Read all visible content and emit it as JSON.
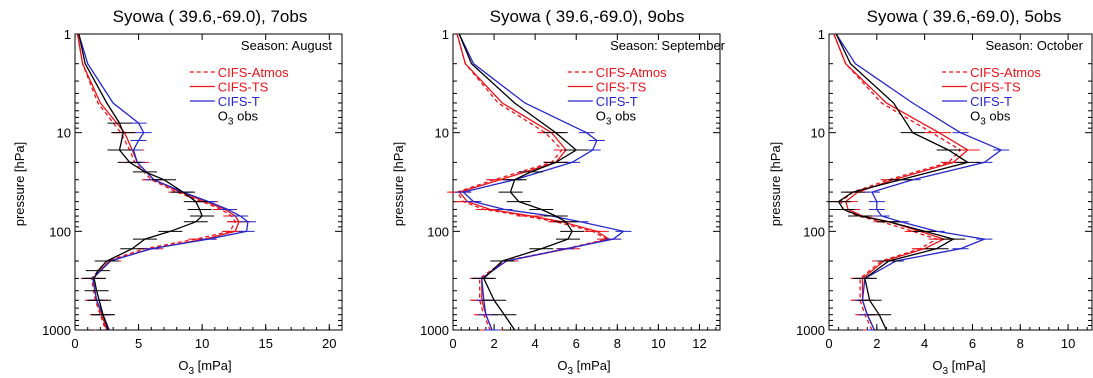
{
  "chart_data": [
    {
      "type": "line",
      "title": "Syowa (  39.6,-69.0),  7obs",
      "season": "Season: August",
      "xlabel": "O3 [mPa]",
      "ylabel": "pressure [hPa]",
      "xlim": [
        0,
        21
      ],
      "xticks": [
        0,
        5,
        10,
        15,
        20
      ],
      "ylim": [
        1000,
        1
      ],
      "yscale": "log",
      "yticks": [
        1,
        10,
        100,
        1000
      ],
      "legend": "top-right",
      "series": [
        {
          "name": "CIFS-Atmos",
          "color": "#e8141b",
          "dash": true,
          "pressure": [
            1,
            2,
            5,
            10,
            15,
            20,
            30,
            40,
            50,
            60,
            70,
            80,
            100,
            120,
            150,
            200,
            300,
            500,
            700,
            1000
          ],
          "o3": [
            0.2,
            0.6,
            1.8,
            3.6,
            4.3,
            4.7,
            6.0,
            8.0,
            10.0,
            11.5,
            12.3,
            12.6,
            12.2,
            9.5,
            5.5,
            2.5,
            1.3,
            1.6,
            2.0,
            2.4
          ]
        },
        {
          "name": "CIFS-TS",
          "color": "#e8141b",
          "dash": false,
          "pressure": [
            1,
            2,
            5,
            10,
            15,
            20,
            30,
            40,
            50,
            60,
            70,
            80,
            100,
            120,
            150,
            200,
            300,
            500,
            700,
            1000
          ],
          "o3": [
            0.2,
            0.6,
            2.0,
            3.9,
            4.5,
            4.9,
            6.2,
            8.3,
            10.3,
            11.8,
            12.6,
            12.9,
            12.6,
            10.2,
            6.0,
            2.7,
            1.4,
            1.7,
            2.1,
            2.5
          ]
        },
        {
          "name": "CIFS-T",
          "color": "#2727cc",
          "dash": false,
          "pressure": [
            1,
            2,
            5,
            8,
            10,
            12,
            15,
            20,
            30,
            40,
            50,
            60,
            70,
            80,
            100,
            120,
            150,
            200,
            300,
            500,
            700,
            1000
          ],
          "o3": [
            0.3,
            1.0,
            3.0,
            5.0,
            5.4,
            5.0,
            4.6,
            4.9,
            6.2,
            8.5,
            10.5,
            12.0,
            13.0,
            13.6,
            13.5,
            10.5,
            6.0,
            2.8,
            1.4,
            1.7,
            2.2,
            2.7
          ]
        },
        {
          "name": "O3 obs",
          "color": "#000000",
          "dash": false,
          "pressure": [
            1,
            2,
            5,
            8,
            10,
            15,
            20,
            25,
            30,
            40,
            50,
            60,
            70,
            80,
            100,
            120,
            150,
            200,
            250,
            300,
            400,
            500,
            700,
            1000
          ],
          "o3": [
            0.3,
            0.8,
            2.5,
            3.5,
            3.8,
            3.5,
            4.3,
            5.5,
            7.0,
            8.5,
            9.5,
            9.8,
            10.0,
            9.5,
            7.5,
            5.5,
            4.5,
            2.5,
            1.8,
            1.5,
            1.7,
            1.9,
            2.2,
            2.6
          ]
        }
      ]
    },
    {
      "type": "line",
      "title": "Syowa (  39.6,-69.0),  9obs",
      "season": "Season: September",
      "xlabel": "O3 [mPa]",
      "ylabel": "pressure [hPa]",
      "xlim": [
        0,
        13
      ],
      "xticks": [
        0,
        2,
        4,
        6,
        8,
        10,
        12
      ],
      "ylim": [
        1000,
        1
      ],
      "yscale": "log",
      "yticks": [
        1,
        10,
        100,
        1000
      ],
      "legend": "top-right",
      "series": [
        {
          "name": "CIFS-Atmos",
          "color": "#e8141b",
          "dash": true,
          "pressure": [
            1,
            2,
            5,
            10,
            15,
            20,
            30,
            40,
            50,
            60,
            70,
            80,
            100,
            120,
            150,
            200,
            300,
            500,
            700,
            1000
          ],
          "o3": [
            0.2,
            0.6,
            2.2,
            4.5,
            5.3,
            4.8,
            2.0,
            0.2,
            0.5,
            1.5,
            3.5,
            5.0,
            6.8,
            7.5,
            5.5,
            2.5,
            1.3,
            1.3,
            1.5,
            1.8
          ]
        },
        {
          "name": "CIFS-TS",
          "color": "#e8141b",
          "dash": false,
          "pressure": [
            1,
            2,
            5,
            10,
            15,
            20,
            30,
            40,
            50,
            60,
            70,
            80,
            100,
            120,
            150,
            200,
            300,
            500,
            700,
            1000
          ],
          "o3": [
            0.2,
            0.6,
            2.4,
            4.8,
            5.5,
            5.0,
            2.3,
            0.3,
            0.7,
            1.8,
            3.8,
            5.3,
            7.0,
            7.6,
            5.6,
            2.6,
            1.4,
            1.4,
            1.6,
            1.9
          ]
        },
        {
          "name": "CIFS-T",
          "color": "#2727cc",
          "dash": false,
          "pressure": [
            1,
            2,
            5,
            10,
            12,
            15,
            20,
            30,
            40,
            50,
            60,
            70,
            80,
            100,
            120,
            150,
            200,
            300,
            500,
            700,
            1000
          ],
          "o3": [
            0.3,
            1.0,
            3.5,
            6.5,
            7.0,
            6.8,
            5.8,
            3.0,
            0.5,
            1.0,
            2.5,
            4.8,
            6.2,
            8.3,
            7.8,
            5.5,
            2.6,
            1.4,
            1.5,
            1.6,
            1.9
          ]
        },
        {
          "name": "O3 obs",
          "color": "#000000",
          "dash": false,
          "pressure": [
            1,
            2,
            5,
            10,
            15,
            20,
            25,
            30,
            40,
            50,
            60,
            70,
            80,
            100,
            120,
            150,
            200,
            300,
            500,
            700,
            1000
          ],
          "o3": [
            0.3,
            0.9,
            3.0,
            5.0,
            6.0,
            5.0,
            3.8,
            3.0,
            2.8,
            3.2,
            4.3,
            5.0,
            5.5,
            5.8,
            5.6,
            4.3,
            2.4,
            1.5,
            2.0,
            2.5,
            3.0
          ]
        }
      ]
    },
    {
      "type": "line",
      "title": "Syowa (  39.6,-69.0),  5obs",
      "season": "Season: October",
      "xlabel": "O3 [mPa]",
      "ylabel": "pressure [hPa]",
      "xlim": [
        0,
        11
      ],
      "xticks": [
        0,
        2,
        4,
        6,
        8,
        10
      ],
      "ylim": [
        1000,
        1
      ],
      "yscale": "log",
      "yticks": [
        1,
        10,
        100,
        1000
      ],
      "legend": "top-right",
      "series": [
        {
          "name": "CIFS-Atmos",
          "color": "#e8141b",
          "dash": true,
          "pressure": [
            1,
            2,
            5,
            10,
            15,
            20,
            30,
            40,
            50,
            60,
            70,
            80,
            100,
            120,
            150,
            200,
            300,
            500,
            700,
            1000
          ],
          "o3": [
            0.2,
            0.7,
            2.2,
            4.3,
            5.5,
            5.0,
            2.5,
            1.0,
            0.5,
            0.6,
            1.2,
            2.2,
            3.5,
            4.5,
            3.8,
            2.2,
            1.3,
            1.3,
            1.5,
            1.8
          ]
        },
        {
          "name": "CIFS-TS",
          "color": "#e8141b",
          "dash": false,
          "pressure": [
            1,
            2,
            5,
            10,
            15,
            20,
            30,
            40,
            50,
            60,
            70,
            80,
            100,
            120,
            150,
            200,
            300,
            500,
            700,
            1000
          ],
          "o3": [
            0.2,
            0.7,
            2.4,
            4.6,
            5.8,
            5.2,
            2.7,
            1.2,
            0.7,
            0.8,
            1.4,
            2.5,
            3.8,
            4.8,
            4.0,
            2.3,
            1.4,
            1.4,
            1.6,
            1.9
          ]
        },
        {
          "name": "CIFS-T",
          "color": "#2727cc",
          "dash": false,
          "pressure": [
            1,
            2,
            5,
            10,
            15,
            20,
            30,
            40,
            50,
            60,
            70,
            80,
            100,
            120,
            150,
            200,
            300,
            500,
            700,
            1000
          ],
          "o3": [
            0.3,
            1.1,
            3.5,
            5.5,
            7.2,
            6.5,
            3.5,
            1.8,
            2.0,
            2.0,
            2.2,
            3.0,
            4.5,
            6.5,
            5.5,
            2.8,
            1.5,
            1.4,
            1.6,
            1.9
          ]
        },
        {
          "name": "O3 obs",
          "color": "#000000",
          "dash": false,
          "pressure": [
            1,
            2,
            5,
            10,
            15,
            20,
            30,
            40,
            50,
            60,
            70,
            80,
            100,
            120,
            150,
            200,
            300,
            500,
            700,
            1000
          ],
          "o3": [
            0.3,
            0.9,
            2.7,
            3.5,
            5.0,
            5.8,
            3.0,
            1.0,
            0.4,
            0.6,
            1.3,
            2.5,
            4.0,
            5.2,
            4.5,
            2.5,
            1.5,
            1.7,
            2.1,
            2.4
          ]
        }
      ]
    }
  ]
}
